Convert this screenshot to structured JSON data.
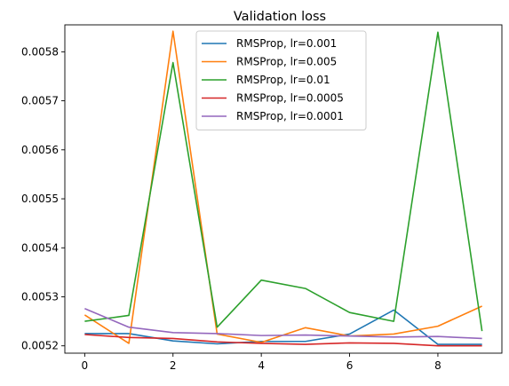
{
  "chart_data": {
    "type": "line",
    "title": "Validation loss",
    "xlabel": "",
    "ylabel": "",
    "x": [
      0,
      1,
      2,
      3,
      4,
      5,
      6,
      7,
      8,
      9
    ],
    "xlim": [
      -0.45,
      9.45
    ],
    "ylim": [
      0.005185,
      0.005855
    ],
    "xticks": [
      0,
      2,
      4,
      6,
      8
    ],
    "yticks": [
      0.0052,
      0.0053,
      0.0054,
      0.0055,
      0.0056,
      0.0057,
      0.0058
    ],
    "xtick_labels": [
      "0",
      "2",
      "4",
      "6",
      "8"
    ],
    "ytick_labels": [
      "0.0052",
      "0.0053",
      "0.0054",
      "0.0055",
      "0.0056",
      "0.0057",
      "0.0058"
    ],
    "legend_position": "top-center",
    "grid": false,
    "series": [
      {
        "name": "RMSProp, lr=0.001",
        "color": "#1f77b4",
        "values": [
          0.005225,
          0.005225,
          0.00521,
          0.005204,
          0.005209,
          0.005209,
          0.005224,
          0.005273,
          0.005203,
          0.005203
        ]
      },
      {
        "name": "RMSProp, lr=0.005",
        "color": "#ff7f0e",
        "values": [
          0.005263,
          0.005205,
          0.005842,
          0.005224,
          0.005207,
          0.005237,
          0.00522,
          0.005224,
          0.00524,
          0.005281
        ]
      },
      {
        "name": "RMSProp, lr=0.01",
        "color": "#2ca02c",
        "values": [
          0.00525,
          0.005262,
          0.005778,
          0.005238,
          0.005334,
          0.005317,
          0.005268,
          0.00525,
          0.00584,
          0.00523
        ]
      },
      {
        "name": "RMSProp, lr=0.0005",
        "color": "#d62728",
        "values": [
          0.005223,
          0.005217,
          0.005215,
          0.005208,
          0.005205,
          0.005203,
          0.005206,
          0.005205,
          0.0052,
          0.0052
        ]
      },
      {
        "name": "RMSProp, lr=0.0001",
        "color": "#9467bd",
        "values": [
          0.005276,
          0.005238,
          0.005227,
          0.005225,
          0.005221,
          0.005222,
          0.00522,
          0.005218,
          0.005219,
          0.005215
        ]
      }
    ]
  }
}
